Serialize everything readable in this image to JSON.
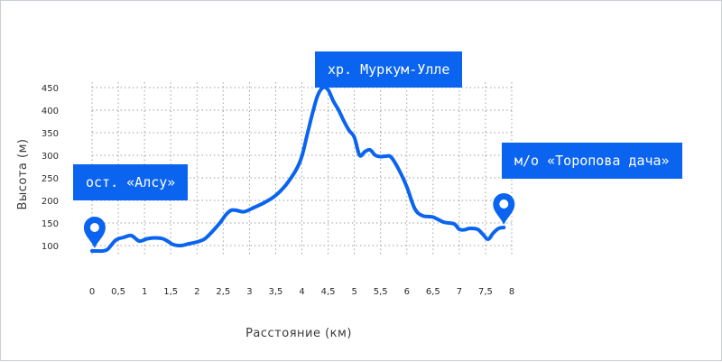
{
  "chart_data": {
    "type": "line",
    "xlabel": "Расстояние (км)",
    "ylabel": "Высота (м)",
    "x_ticks": [
      "0",
      "0,5",
      "1",
      "1,5",
      "2",
      "2,5",
      "3",
      "3,5",
      "4",
      "4,5",
      "5",
      "5,5",
      "6",
      "6,5",
      "7",
      "7,5",
      "8"
    ],
    "y_ticks": [
      "100",
      "150",
      "200",
      "250",
      "300",
      "350",
      "400",
      "450"
    ],
    "xlim": [
      0,
      8
    ],
    "ylim": [
      100,
      450
    ],
    "grid": true,
    "line_color": "#0a64f0",
    "series": [
      {
        "x": [
          0.0,
          0.1,
          0.2,
          0.3,
          0.45,
          0.6,
          0.75,
          0.9,
          1.05,
          1.2,
          1.35,
          1.45,
          1.55,
          1.7,
          1.85,
          2.0,
          2.15,
          2.3,
          2.45,
          2.55,
          2.65,
          2.75,
          2.9,
          3.1,
          3.3,
          3.5,
          3.7,
          3.9,
          4.0,
          4.1,
          4.2,
          4.3,
          4.4,
          4.5,
          4.6,
          4.7,
          4.8,
          4.9,
          5.0,
          5.1,
          5.2,
          5.3,
          5.4,
          5.5,
          5.6,
          5.7,
          5.85,
          6.0,
          6.15,
          6.3,
          6.5,
          6.7,
          6.9,
          7.0,
          7.1,
          7.2,
          7.35,
          7.45,
          7.55,
          7.65,
          7.75,
          7.85
        ],
        "values": [
          88,
          88,
          88,
          92,
          112,
          118,
          122,
          110,
          115,
          117,
          115,
          109,
          102,
          100,
          104,
          108,
          115,
          132,
          152,
          168,
          178,
          178,
          175,
          185,
          196,
          211,
          235,
          270,
          298,
          345,
          392,
          432,
          450,
          445,
          420,
          400,
          376,
          355,
          340,
          300,
          308,
          312,
          300,
          297,
          298,
          296,
          268,
          230,
          182,
          166,
          163,
          152,
          148,
          136,
          135,
          138,
          136,
          125,
          114,
          128,
          138,
          140
        ]
      }
    ],
    "markers": [
      {
        "x": 0.05,
        "label": "ост. «Алсу»"
      },
      {
        "x": 7.85,
        "label": "м/о «Торопова дача»"
      }
    ],
    "annotations": [
      {
        "x": 4.45,
        "label": "хр. Муркум-Улле"
      }
    ]
  }
}
